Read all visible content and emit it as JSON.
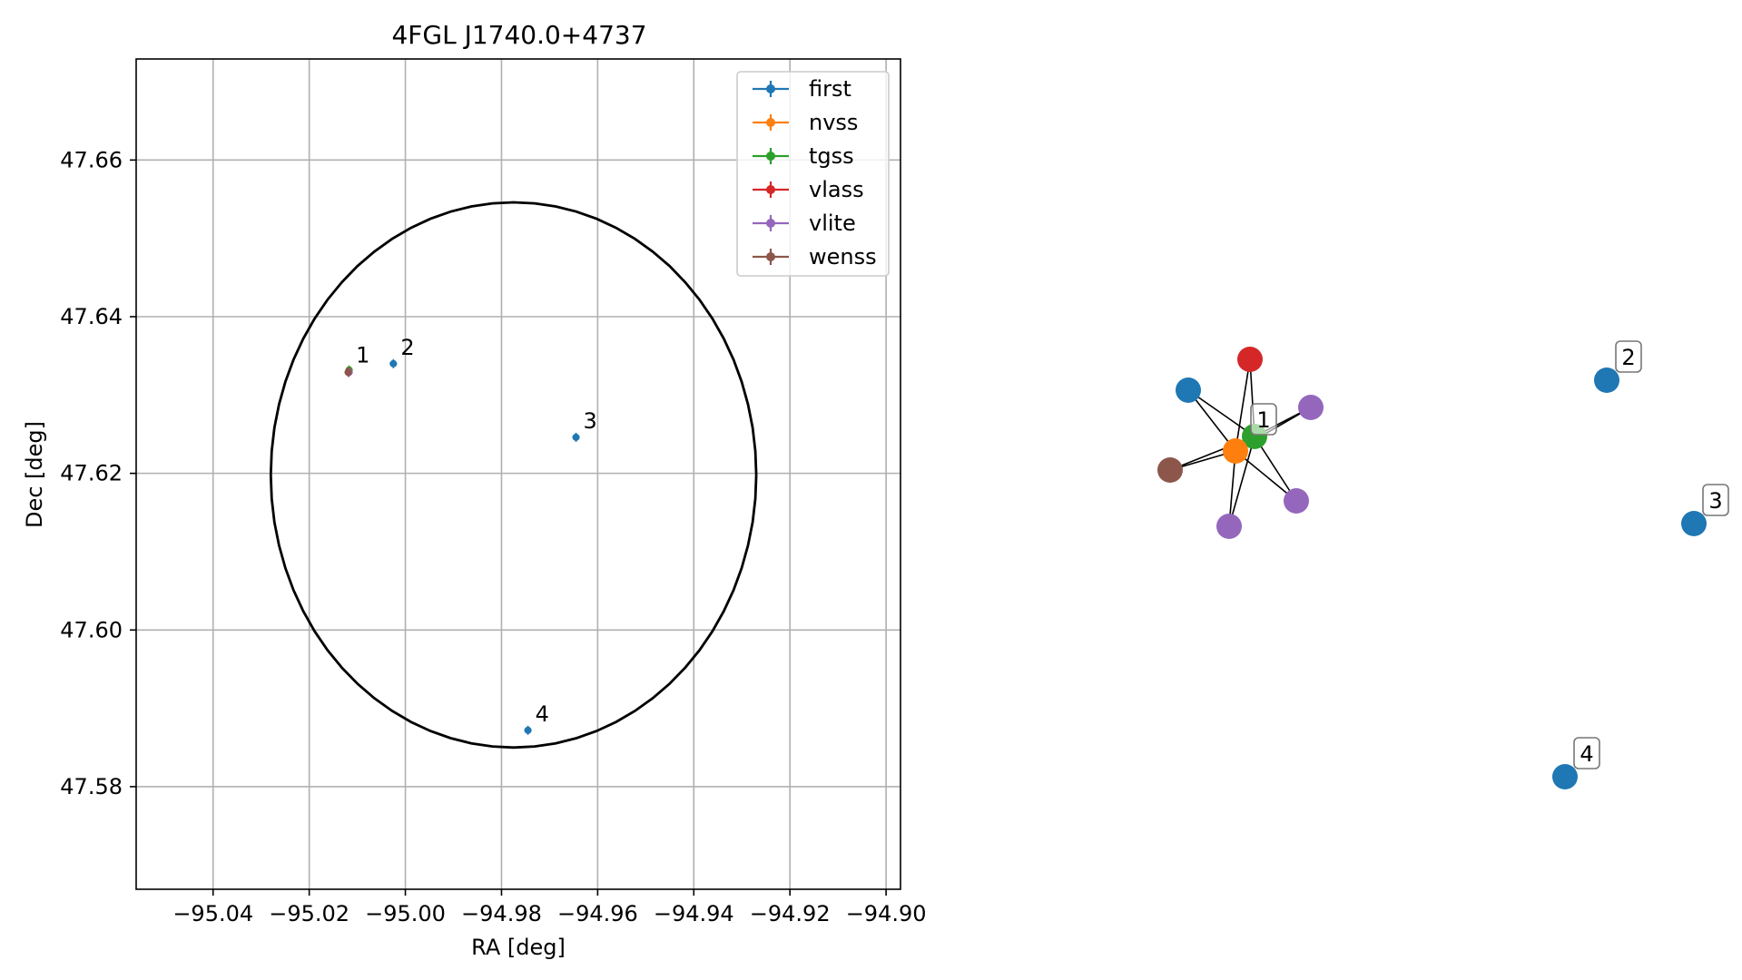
{
  "chart_data": [
    {
      "type": "scatter",
      "title": "4FGL J1740.0+4737",
      "xlabel": "RA [deg]",
      "ylabel": "Dec [deg]",
      "xlim": [
        -95.056,
        -94.897
      ],
      "ylim": [
        47.5669,
        47.6729
      ],
      "xticks": [
        -95.04,
        -95.02,
        -95.0,
        -94.98,
        -94.96,
        -94.94,
        -94.92,
        -94.9
      ],
      "xtick_labels": [
        "−95.04",
        "−95.02",
        "−95.00",
        "−94.98",
        "−94.96",
        "−94.94",
        "−94.92",
        "−94.90"
      ],
      "yticks": [
        47.58,
        47.6,
        47.62,
        47.64,
        47.66
      ],
      "ytick_labels": [
        "47.58",
        "47.60",
        "47.62",
        "47.64",
        "47.66"
      ],
      "grid": true,
      "legend_position": "top-right",
      "ellipse": {
        "center": [
          -94.9775,
          47.6198
        ],
        "radius_x": 0.0505,
        "radius_y": 0.0348,
        "color": "#000000"
      },
      "series": [
        {
          "name": "first",
          "color": "#1f77b4",
          "points": [
            {
              "x": -95.0118,
              "y": 47.633
            },
            {
              "x": -95.0025,
              "y": 47.634
            },
            {
              "x": -94.9645,
              "y": 47.6246
            },
            {
              "x": -94.9745,
              "y": 47.5872
            }
          ]
        },
        {
          "name": "nvss",
          "color": "#ff7f0e",
          "points": [
            {
              "x": -95.0118,
              "y": 47.6329
            }
          ]
        },
        {
          "name": "tgss",
          "color": "#2ca02c",
          "points": [
            {
              "x": -95.0117,
              "y": 47.6332
            }
          ]
        },
        {
          "name": "vlass",
          "color": "#d62728",
          "points": [
            {
              "x": -95.0118,
              "y": 47.633
            }
          ]
        },
        {
          "name": "vlite",
          "color": "#9467bd",
          "points": [
            {
              "x": -95.0117,
              "y": 47.6329
            }
          ]
        },
        {
          "name": "wenss",
          "color": "#8c564b",
          "points": [
            {
              "x": -95.0119,
              "y": 47.6329
            }
          ]
        }
      ],
      "point_labels": [
        {
          "text": "1",
          "x": -95.0118,
          "y": 47.633
        },
        {
          "text": "2",
          "x": -95.0025,
          "y": 47.634
        },
        {
          "text": "3",
          "x": -94.9645,
          "y": 47.6246
        },
        {
          "text": "4",
          "x": -94.9745,
          "y": 47.5872
        }
      ]
    },
    {
      "type": "graph",
      "edge_color": "#000000",
      "groups": [
        {
          "label": "1",
          "hub_color": "#2ca02c",
          "members": [
            {
              "catalog": "first",
              "color": "#1f77b4"
            },
            {
              "catalog": "nvss",
              "color": "#ff7f0e"
            },
            {
              "catalog": "tgss",
              "color": "#2ca02c"
            },
            {
              "catalog": "vlass",
              "color": "#d62728"
            },
            {
              "catalog": "vlite",
              "color": "#9467bd"
            },
            {
              "catalog": "vlite",
              "color": "#9467bd"
            },
            {
              "catalog": "vlite",
              "color": "#9467bd"
            },
            {
              "catalog": "wenss",
              "color": "#8c564b"
            }
          ]
        },
        {
          "label": "2",
          "members": [
            {
              "catalog": "first",
              "color": "#1f77b4"
            }
          ]
        },
        {
          "label": "3",
          "members": [
            {
              "catalog": "first",
              "color": "#1f77b4"
            }
          ]
        },
        {
          "label": "4",
          "members": [
            {
              "catalog": "first",
              "color": "#1f77b4"
            }
          ]
        }
      ]
    }
  ]
}
